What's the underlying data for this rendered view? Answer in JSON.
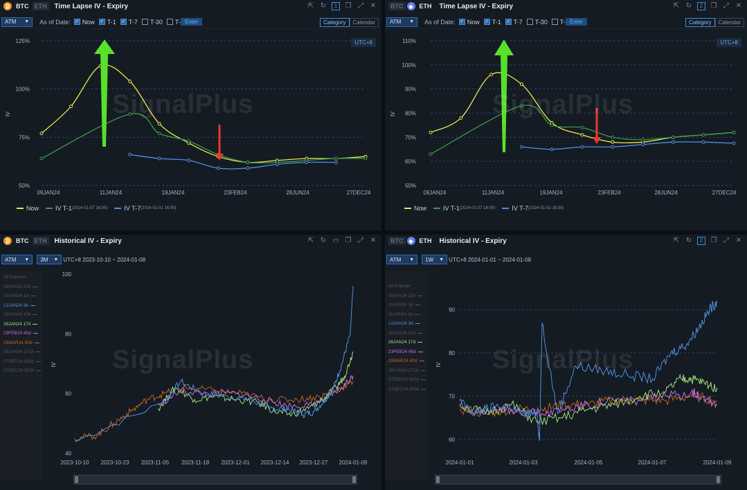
{
  "watermark": "SignalPlus",
  "colors": {
    "now": "#e8e84a",
    "t1": "#3a9a48",
    "t7": "#4f8fe0",
    "grid": "#24456c",
    "green_arrow": "#59e02b",
    "red_arrow": "#e83a2b"
  },
  "timelapse": [
    {
      "coin_a": "BTC",
      "coin_b": "ETH",
      "active": "BTC",
      "title": "Time Lapse IV - Expiry",
      "window_num": "1",
      "atm": "ATM",
      "as_of": "As of Date:",
      "checks": [
        {
          "label": "Now",
          "on": true
        },
        {
          "label": "T-1",
          "on": true
        },
        {
          "label": "T-7",
          "on": true
        },
        {
          "label": "T-30",
          "on": false
        },
        {
          "label": "T-",
          "on": false
        }
      ],
      "enter": "Enter",
      "seg": [
        "Category",
        "Calendar"
      ],
      "utc": "UTC+8",
      "legend": [
        {
          "name": "Now",
          "note": ""
        },
        {
          "name": "IV T-1",
          "note": "(2024-01-07 16:00)"
        },
        {
          "name": "IV T-7",
          "note": "(2024-01-01 16:00)"
        }
      ],
      "chart_data": {
        "type": "line",
        "ylabel": "IV",
        "ylim": [
          50,
          125
        ],
        "y_ticks": [
          "50%",
          "75%",
          "100%",
          "125%"
        ],
        "y_tick_values": [
          50,
          75,
          100,
          125
        ],
        "x_ticks": [
          "09JAN24",
          "11JAN24",
          "19JAN24",
          "23FEB24",
          "28JUN24",
          "27DEC24"
        ],
        "series": [
          {
            "name": "Now",
            "points": [
              [
                0,
                77
              ],
              [
                1,
                91
              ],
              [
                2,
                112
              ],
              [
                3,
                104
              ],
              [
                4,
                82
              ],
              [
                5,
                72
              ],
              [
                6,
                65
              ],
              [
                7,
                62
              ],
              [
                8,
                63
              ],
              [
                9,
                64
              ],
              [
                10,
                64
              ],
              [
                11,
                65
              ]
            ]
          },
          {
            "name": "IV T-1",
            "points": [
              [
                0,
                64
              ],
              [
                3,
                87
              ],
              [
                4,
                77
              ],
              [
                5,
                73
              ],
              [
                6,
                66
              ],
              [
                7,
                62
              ],
              [
                8,
                62
              ],
              [
                9,
                63
              ],
              [
                10,
                64
              ],
              [
                11,
                64
              ]
            ]
          },
          {
            "name": "IV T-7",
            "points": [
              [
                3,
                66
              ],
              [
                4,
                64
              ],
              [
                5,
                63
              ],
              [
                6,
                59
              ],
              [
                7,
                59
              ],
              [
                8,
                61
              ],
              [
                9,
                62
              ],
              [
                10,
                62
              ]
            ]
          }
        ]
      }
    },
    {
      "coin_a": "BTC",
      "coin_b": "ETH",
      "active": "ETH",
      "title": "Time Lapse IV - Expiry",
      "window_num": "2",
      "atm": "ATM",
      "as_of": "As of Date:",
      "checks": [
        {
          "label": "Now",
          "on": true
        },
        {
          "label": "T-1",
          "on": true
        },
        {
          "label": "T-7",
          "on": true
        },
        {
          "label": "T-30",
          "on": false
        },
        {
          "label": "T-",
          "on": false
        }
      ],
      "enter": "Enter",
      "seg": [
        "Category",
        "Calendar"
      ],
      "utc": "UTC+8",
      "legend": [
        {
          "name": "Now",
          "note": ""
        },
        {
          "name": "IV T-1",
          "note": "(2024-01-07 16:00)"
        },
        {
          "name": "IV T-7",
          "note": "(2024-01-01 16:00)"
        }
      ],
      "chart_data": {
        "type": "line",
        "ylabel": "IV",
        "ylim": [
          50,
          110
        ],
        "y_ticks": [
          "50%",
          "60%",
          "70%",
          "80%",
          "90%",
          "100%",
          "110%"
        ],
        "y_tick_values": [
          50,
          60,
          70,
          80,
          90,
          100,
          110
        ],
        "x_ticks": [
          "09JAN24",
          "11JAN24",
          "19JAN24",
          "23FEB24",
          "28JUN24",
          "27DEC24"
        ],
        "series": [
          {
            "name": "Now",
            "points": [
              [
                0,
                72
              ],
              [
                1,
                78
              ],
              [
                2,
                96
              ],
              [
                3,
                92
              ],
              [
                4,
                76
              ],
              [
                5,
                71
              ],
              [
                6,
                68
              ],
              [
                7,
                68
              ],
              [
                8,
                70
              ],
              [
                9,
                71
              ],
              [
                10,
                72
              ]
            ]
          },
          {
            "name": "IV T-1",
            "points": [
              [
                0,
                63
              ],
              [
                3,
                83
              ],
              [
                4,
                75
              ],
              [
                5,
                74
              ],
              [
                6,
                70
              ],
              [
                7,
                69
              ],
              [
                8,
                70
              ],
              [
                9,
                71
              ],
              [
                10,
                72
              ]
            ]
          },
          {
            "name": "IV T-7",
            "points": [
              [
                3,
                66
              ],
              [
                4,
                65
              ],
              [
                5,
                66
              ],
              [
                6,
                66
              ],
              [
                7,
                67
              ],
              [
                8,
                68
              ],
              [
                9,
                68
              ],
              [
                10,
                67.5
              ]
            ]
          }
        ]
      }
    }
  ],
  "historical": [
    {
      "coin_a": "BTC",
      "coin_b": "ETH",
      "active": "BTC",
      "title": "Historical IV - Expiry",
      "atm": "ATM",
      "period": "3M",
      "range": "UTC+8 2023-10-10 ~ 2024-01-08",
      "expiries": [
        {
          "label": "All Expiries",
          "color": "#4e5764",
          "line": false
        },
        {
          "label": "09JAN24 22h",
          "color": "#4e5764",
          "line": true
        },
        {
          "label": "10JAN24 1d",
          "color": "#4e5764",
          "line": true
        },
        {
          "label": "12JAN24 3d",
          "color": "#4f8fe0",
          "line": true
        },
        {
          "label": "19JAN24 10d",
          "color": "#4e5764",
          "line": true
        },
        {
          "label": "26JAN24 17d",
          "color": "#9be07a",
          "line": true
        },
        {
          "label": "23FEB24 45d",
          "color": "#c76ee0",
          "line": true
        },
        {
          "label": "29MAR24 80d",
          "color": "#c0641e",
          "line": true
        },
        {
          "label": "28JUN24 171d",
          "color": "#4e5764",
          "line": true
        },
        {
          "label": "27SEP24 262d",
          "color": "#4e5764",
          "line": true
        },
        {
          "label": "27DEC24 353d",
          "color": "#4e5764",
          "line": true
        }
      ],
      "chart_data": {
        "type": "line",
        "ylabel": "IV",
        "ylim": [
          40,
          100
        ],
        "y_ticks": [
          "40",
          "60",
          "80",
          "100"
        ],
        "y_tick_values": [
          40,
          60,
          80,
          100
        ],
        "x_ticks": [
          "2023-10-10",
          "2023-10-23",
          "2023-11-05",
          "2023-11-18",
          "2023-12-01",
          "2023-12-14",
          "2023-12-27",
          "2024-01-09"
        ],
        "series": [
          {
            "name": "12JAN24 3d",
            "x": [
              0,
              0.32,
              0.38,
              0.46,
              0.55,
              0.63,
              0.7,
              0.76,
              0.82,
              0.86,
              0.9,
              0.93,
              0.96,
              0.99,
              1.0
            ],
            "values": [
              44,
              57,
              64,
              60,
              59,
              58,
              55,
              55,
              53,
              54,
              58,
              62,
              70,
              80,
              96
            ]
          },
          {
            "name": "26JAN24 17d",
            "x": [
              0.3,
              0.36,
              0.43,
              0.5,
              0.58,
              0.66,
              0.72,
              0.78,
              0.84,
              0.89,
              0.94,
              0.97,
              1.0
            ],
            "values": [
              55,
              62,
              58,
              59,
              58,
              57,
              54,
              53,
              55,
              58,
              62,
              66,
              74
            ]
          },
          {
            "name": "23FEB24 45d",
            "x": [
              0.3,
              0.38,
              0.48,
              0.58,
              0.68,
              0.76,
              0.84,
              0.9,
              0.96,
              1.0
            ],
            "values": [
              56,
              61,
              60,
              60,
              58,
              56,
              56,
              58,
              62,
              66
            ]
          },
          {
            "name": "29MAR24 80d",
            "x": [
              0,
              0.08,
              0.14,
              0.2,
              0.26,
              0.32,
              0.4,
              0.5,
              0.6,
              0.7,
              0.8,
              0.88,
              0.94,
              1.0
            ],
            "values": [
              45,
              46,
              50,
              54,
              58,
              60,
              62,
              61,
              60,
              58,
              58,
              59,
              61,
              64
            ]
          }
        ]
      }
    },
    {
      "coin_a": "BTC",
      "coin_b": "ETH",
      "active": "ETH",
      "title": "Historical IV - Expiry",
      "window_num": "2",
      "atm": "ATM",
      "period": "1W",
      "range": "UTC+8 2024-01-01 ~ 2024-01-08",
      "expiries": [
        {
          "label": "All Expiries",
          "color": "#4e5764",
          "line": false
        },
        {
          "label": "09JAN24 22h",
          "color": "#4e5764",
          "line": true
        },
        {
          "label": "10JAN24 1d",
          "color": "#4e5764",
          "line": true
        },
        {
          "label": "11JAN24 2d",
          "color": "#4e5764",
          "line": true
        },
        {
          "label": "12JAN24 3d",
          "color": "#4f8fe0",
          "line": true
        },
        {
          "label": "19JAN24 10d",
          "color": "#4e5764",
          "line": true
        },
        {
          "label": "26JAN24 17d",
          "color": "#9be07a",
          "line": true
        },
        {
          "label": "23FEB24 45d",
          "color": "#c76ee0",
          "line": true
        },
        {
          "label": "29MAR24 80d",
          "color": "#c0641e",
          "line": true
        },
        {
          "label": "28JUN24 171d",
          "color": "#4e5764",
          "line": true
        },
        {
          "label": "27SEP24 262d",
          "color": "#4e5764",
          "line": true
        },
        {
          "label": "27DEC24 353d",
          "color": "#4e5764",
          "line": true
        }
      ],
      "chart_data": {
        "type": "line",
        "ylabel": "IV",
        "ylim": [
          60,
          92
        ],
        "y_ticks": [
          "60",
          "70",
          "80",
          "90"
        ],
        "y_tick_values": [
          60,
          70,
          80,
          90
        ],
        "x_ticks": [
          "2024-01-01",
          "2024-01-03",
          "2024-01-05",
          "2024-01-07",
          "2024-01-09"
        ],
        "series": [
          {
            "name": "12JAN24 3d",
            "x": [
              0,
              0.05,
              0.1,
              0.18,
              0.24,
              0.3,
              0.31,
              0.32,
              0.38,
              0.45,
              0.55,
              0.65,
              0.75,
              0.82,
              0.88,
              0.93,
              0.97,
              1.0
            ],
            "values": [
              69,
              66,
              67,
              68,
              66,
              66,
              60,
              87,
              66,
              77,
              76,
              75,
              74,
              80,
              82,
              86,
              90,
              92
            ]
          },
          {
            "name": "26JAN24 17d",
            "x": [
              0,
              0.1,
              0.2,
              0.3,
              0.4,
              0.5,
              0.6,
              0.7,
              0.8,
              0.86,
              0.9,
              0.95,
              1.0
            ],
            "values": [
              68,
              66,
              68,
              64,
              65,
              67,
              68,
              70,
              71,
              74,
              74,
              73,
              72
            ]
          },
          {
            "name": "23FEB24 45d",
            "x": [
              0,
              0.1,
              0.2,
              0.32,
              0.4,
              0.5,
              0.6,
              0.7,
              0.8,
              0.9,
              0.95,
              1.0
            ],
            "values": [
              68,
              66,
              67,
              66,
              67,
              68,
              69,
              69,
              70,
              71,
              70,
              68
            ]
          },
          {
            "name": "29MAR24 80d",
            "x": [
              0,
              0.1,
              0.2,
              0.32,
              0.4,
              0.5,
              0.6,
              0.7,
              0.8,
              0.9,
              1.0
            ],
            "values": [
              67,
              66,
              67,
              67,
              68,
              68,
              69,
              69,
              69,
              70,
              69
            ]
          }
        ]
      }
    }
  ]
}
